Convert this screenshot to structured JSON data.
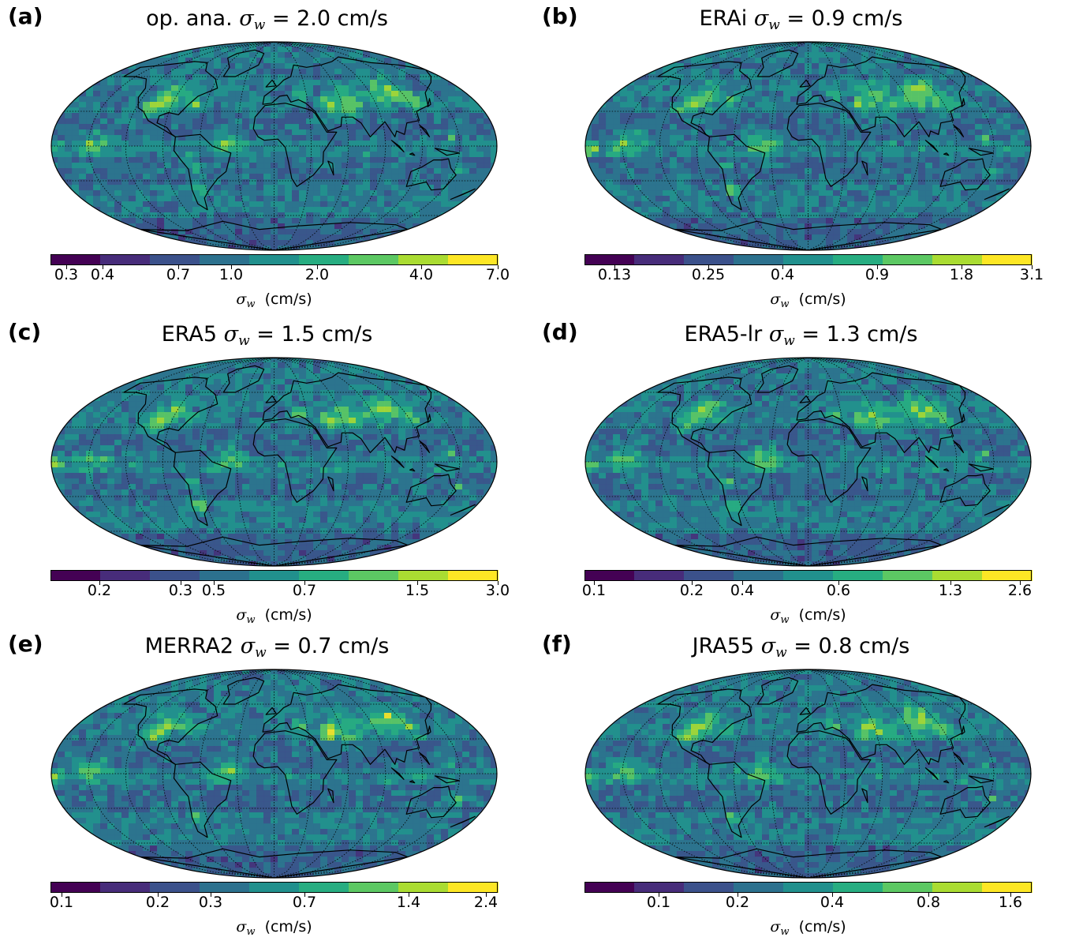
{
  "colors": {
    "colormap": [
      "#440154",
      "#472c7a",
      "#3b518b",
      "#2c718e",
      "#21908d",
      "#27ad81",
      "#5cc863",
      "#aadc32",
      "#fde725"
    ],
    "coastline": "#000000",
    "grid": "#000000"
  },
  "panels": [
    {
      "letter": "(a)",
      "title_prefix": "op. ana.",
      "sigma": "σ",
      "subscript": "w",
      "title_value": "= 2.0 cm/s",
      "ticks": [
        "0.3",
        "0.4",
        "0.7",
        "1.0",
        "2.0",
        "4.0",
        "7.0"
      ],
      "colorbar_label": "(cm/s)"
    },
    {
      "letter": "(b)",
      "title_prefix": "ERAi",
      "sigma": "σ",
      "subscript": "w",
      "title_value": "= 0.9 cm/s",
      "ticks": [
        "0.13",
        "0.25",
        "0.4",
        "0.9",
        "1.8",
        "3.1"
      ],
      "colorbar_label": "(cm/s)"
    },
    {
      "letter": "(c)",
      "title_prefix": "ERA5",
      "sigma": "σ",
      "subscript": "w",
      "title_value": "= 1.5 cm/s",
      "ticks": [
        "0.2",
        "0.3",
        "0.5",
        "0.7",
        "1.5",
        "3.0"
      ],
      "colorbar_label": "(cm/s)"
    },
    {
      "letter": "(d)",
      "title_prefix": "ERA5-lr",
      "sigma": "σ",
      "subscript": "w",
      "title_value": "= 1.3 cm/s",
      "ticks": [
        "0.1",
        "0.2",
        "0.4",
        "0.6",
        "1.3",
        "2.6"
      ],
      "colorbar_label": "(cm/s)"
    },
    {
      "letter": "(e)",
      "title_prefix": "MERRA2",
      "sigma": "σ",
      "subscript": "w",
      "title_value": "= 0.7 cm/s",
      "ticks": [
        "0.1",
        "0.2",
        "0.3",
        "0.7",
        "1.4",
        "2.4"
      ],
      "colorbar_label": "(cm/s)"
    },
    {
      "letter": "(f)",
      "title_prefix": "JRA55",
      "sigma": "σ",
      "subscript": "w",
      "title_value": "= 0.8 cm/s",
      "ticks": [
        "0.1",
        "0.2",
        "0.4",
        "0.8",
        "1.6"
      ],
      "colorbar_label": "(cm/s)"
    }
  ]
}
